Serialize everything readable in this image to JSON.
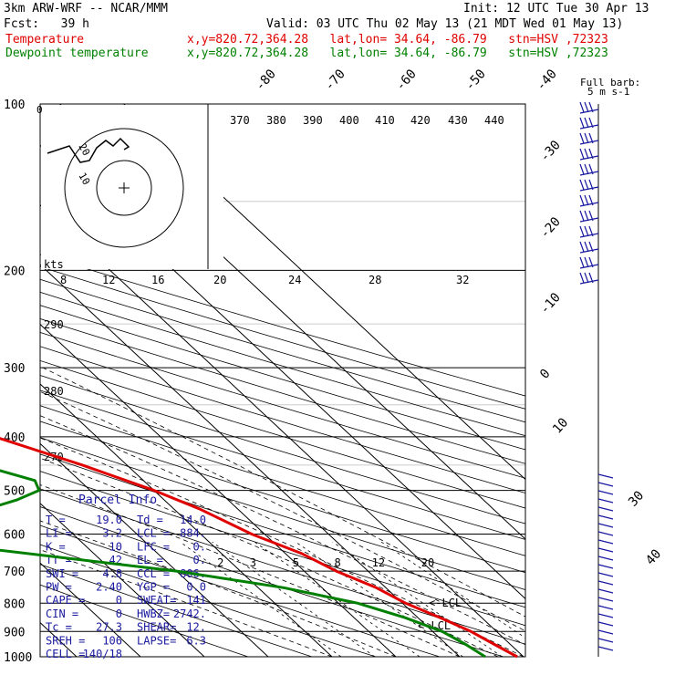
{
  "header": {
    "model": "3km ARW-WRF -- NCAR/MMM",
    "init": "Init: 12 UTC Tue 30 Apr 13",
    "fcst": "Fcst:   39 h",
    "valid": "Valid: 03 UTC Thu 02 May 13 (21 MDT Wed 01 May 13)",
    "temp_label": "Temperature",
    "temp_loc": "x,y=820.72,364.28   lat,lon= 34.64, -86.79   stn=HSV ,72323",
    "dew_label": "Dewpoint temperature",
    "dew_loc": "x,y=820.72,364.28   lat,lon= 34.64, -86.79   stn=HSV ,72323"
  },
  "colors": {
    "temperature": "#e00000",
    "dewpoint": "#008000",
    "panel": "#1a1aa0",
    "barbs": "#1a1aa0"
  },
  "chart_data": {
    "type": "line",
    "title": "",
    "y_axis": "pressure (hPa), log scale",
    "pressure_labels": [
      "100",
      "200",
      "300",
      "400",
      "500",
      "600",
      "700",
      "800",
      "900",
      "1000"
    ],
    "isotherm_labels": [
      "-80",
      "-70",
      "-60",
      "-50",
      "-40",
      "-30",
      "-20",
      "-10",
      "0",
      "10",
      "30",
      "40"
    ],
    "theta_labels_top": [
      "370",
      "380",
      "390",
      "400",
      "410",
      "420",
      "430",
      "440"
    ],
    "theta_labels_left": [
      "290",
      "280",
      "270"
    ],
    "mixing_ratio_labels": [
      "2",
      "3",
      "5",
      "8",
      "12",
      "20"
    ],
    "hodograph": {
      "units": "kts",
      "x_ticks": [
        "8",
        "12",
        "16",
        "20",
        "24",
        "28",
        "32"
      ],
      "ring_labels": [
        "10",
        "20"
      ]
    },
    "lcl_labels": [
      "<-LCL",
      "<-LCL"
    ],
    "barb_legend": [
      "Full barb:",
      "5 m s-1"
    ],
    "series": [
      {
        "name": "Temperature",
        "points": [
          [
            100,
            -58
          ],
          [
            110,
            -60
          ],
          [
            130,
            -62.5
          ],
          [
            150,
            -66
          ],
          [
            170,
            -70
          ],
          [
            185,
            -71
          ],
          [
            200,
            -69
          ],
          [
            230,
            -63
          ],
          [
            260,
            -56
          ],
          [
            300,
            -46
          ],
          [
            350,
            -36
          ],
          [
            400,
            -26
          ],
          [
            450,
            -17
          ],
          [
            500,
            -10
          ],
          [
            540,
            -6
          ],
          [
            600,
            -2
          ],
          [
            650,
            2.5
          ],
          [
            700,
            5
          ],
          [
            750,
            8.5
          ],
          [
            800,
            10.5
          ],
          [
            850,
            13.5
          ],
          [
            900,
            16
          ],
          [
            950,
            17.5
          ],
          [
            1000,
            19
          ]
        ]
      },
      {
        "name": "Dewpoint temperature",
        "points": [
          [
            100,
            -78
          ],
          [
            120,
            -79
          ],
          [
            140,
            -81
          ],
          [
            160,
            -85
          ],
          [
            175,
            -87
          ],
          [
            190,
            -88
          ],
          [
            210,
            -85
          ],
          [
            240,
            -78
          ],
          [
            270,
            -72
          ],
          [
            300,
            -65
          ],
          [
            340,
            -55
          ],
          [
            400,
            -43
          ],
          [
            450,
            -33
          ],
          [
            480,
            -27
          ],
          [
            500,
            -28
          ],
          [
            520,
            -33
          ],
          [
            560,
            -45
          ],
          [
            600,
            -55
          ],
          [
            610,
            -58
          ],
          [
            640,
            -45
          ],
          [
            700,
            -20
          ],
          [
            750,
            -6
          ],
          [
            800,
            3
          ],
          [
            850,
            8
          ],
          [
            900,
            11.5
          ],
          [
            950,
            13
          ],
          [
            1000,
            14
          ]
        ]
      }
    ],
    "hodograph_trace": [
      [
        52,
        168
      ],
      [
        76,
        160
      ],
      [
        88,
        178
      ],
      [
        98,
        176
      ],
      [
        106,
        162
      ],
      [
        116,
        154
      ],
      [
        124,
        160
      ],
      [
        132,
        152
      ],
      [
        141,
        161
      ],
      [
        136,
        164
      ]
    ]
  },
  "parcel_info": {
    "title": "Parcel Info",
    "rows": [
      {
        "k1": "T  =",
        "v1": "19.0",
        "k2": "Td =",
        "v2": "14.0"
      },
      {
        "k1": "LI =",
        "v1": "3.2",
        "k2": "LCL =",
        "v2": "884."
      },
      {
        "k1": "K  =",
        "v1": "10",
        "k2": "LFC =",
        "v2": "0."
      },
      {
        "k1": "TT =",
        "v1": "42",
        "k2": "EL  =",
        "v2": "0."
      },
      {
        "k1": "SWI =",
        "v1": "4.8",
        "k2": "CCL =",
        "v2": "806."
      },
      {
        "k1": "PW =",
        "v1": "2.40",
        "k2": "YGP =",
        "v2": "0.0"
      },
      {
        "k1": "CAPE =",
        "v1": "0",
        "k2": "SWEAT=",
        "v2": "141"
      },
      {
        "k1": "CIN =",
        "v1": "0",
        "k2": "HWBZ=",
        "v2": "2742."
      },
      {
        "k1": "Tc =",
        "v1": "27.3",
        "k2": "SHEAR=",
        "v2": "12."
      },
      {
        "k1": "SREH =",
        "v1": "106",
        "k2": "LAPSE=",
        "v2": "6.3"
      },
      {
        "k1": "CELL =",
        "v1": "140/18",
        "k2": "",
        "v2": ""
      }
    ]
  }
}
